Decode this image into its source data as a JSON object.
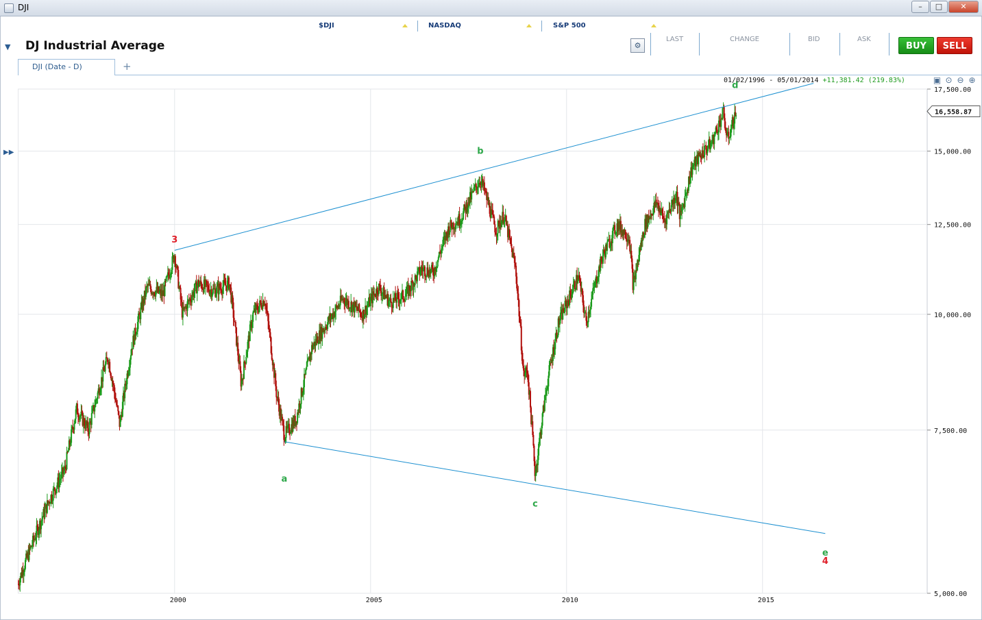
{
  "window": {
    "title": "DJI",
    "buttons": [
      "minimize",
      "maximize",
      "close"
    ]
  },
  "watchlist": [
    {
      "symbol": "$DJI"
    },
    {
      "symbol": "NASDAQ"
    },
    {
      "symbol": "S&P 500"
    }
  ],
  "instrument": {
    "name": "DJ Industrial Average"
  },
  "quote_columns": [
    "LAST",
    "CHANGE",
    "BID",
    "ASK"
  ],
  "buy_label": "BUY",
  "sell_label": "SELL",
  "tabs": [
    {
      "label": "DJI (Date - D)"
    }
  ],
  "add_tab_label": "+",
  "chart_range": {
    "dates": "01/02/1996 - 05/01/2014",
    "change": "+11,381.42 (219.83%)"
  },
  "colors": {
    "up": "#1a9a1a",
    "down": "#b0100c",
    "trendline": "#1b8fd0",
    "grid": "#e3e6ea",
    "wave_green": "#2ea84a",
    "wave_red": "#e0202a"
  },
  "chart_data": {
    "type": "candlestick",
    "y_scale": "log",
    "ylim": [
      5000,
      17500
    ],
    "x_range": [
      1996.0,
      2019.2
    ],
    "x_ticks": [
      "2000",
      "2005",
      "2010",
      "2015"
    ],
    "y_ticks": [
      "17,500.00",
      "15,000.00",
      "12,500.00",
      "10,000.00",
      "7,500.00",
      "5,000.00"
    ],
    "last_price": "16,558.87",
    "price_path": [
      [
        1996.0,
        5120
      ],
      [
        1996.4,
        5700
      ],
      [
        1996.8,
        6300
      ],
      [
        1997.2,
        6800
      ],
      [
        1997.5,
        7900
      ],
      [
        1997.8,
        7500
      ],
      [
        1998.3,
        9000
      ],
      [
        1998.6,
        7600
      ],
      [
        1998.9,
        9200
      ],
      [
        1999.3,
        10700
      ],
      [
        1999.7,
        10500
      ],
      [
        2000.0,
        11600
      ],
      [
        2000.2,
        10000
      ],
      [
        2000.6,
        10800
      ],
      [
        2001.0,
        10600
      ],
      [
        2001.4,
        10800
      ],
      [
        2001.7,
        8400
      ],
      [
        2002.0,
        10000
      ],
      [
        2002.3,
        10400
      ],
      [
        2002.6,
        8200
      ],
      [
        2002.8,
        7400
      ],
      [
        2003.1,
        7700
      ],
      [
        2003.5,
        9200
      ],
      [
        2003.9,
        9800
      ],
      [
        2004.3,
        10400
      ],
      [
        2004.8,
        10000
      ],
      [
        2005.2,
        10700
      ],
      [
        2005.5,
        10300
      ],
      [
        2005.9,
        10500
      ],
      [
        2006.3,
        11200
      ],
      [
        2006.6,
        11100
      ],
      [
        2007.0,
        12400
      ],
      [
        2007.3,
        12700
      ],
      [
        2007.8,
        14000
      ],
      [
        2007.9,
        13600
      ],
      [
        2008.2,
        12300
      ],
      [
        2008.4,
        12800
      ],
      [
        2008.7,
        11200
      ],
      [
        2008.9,
        8600
      ],
      [
        2009.0,
        8700
      ],
      [
        2009.2,
        6700
      ],
      [
        2009.5,
        8400
      ],
      [
        2009.8,
        9800
      ],
      [
        2010.1,
        10500
      ],
      [
        2010.3,
        11000
      ],
      [
        2010.5,
        9800
      ],
      [
        2010.9,
        11500
      ],
      [
        2011.3,
        12500
      ],
      [
        2011.6,
        12100
      ],
      [
        2011.7,
        10700
      ],
      [
        2012.0,
        12500
      ],
      [
        2012.3,
        13200
      ],
      [
        2012.5,
        12600
      ],
      [
        2012.8,
        13500
      ],
      [
        2012.9,
        12700
      ],
      [
        2013.2,
        14400
      ],
      [
        2013.5,
        15000
      ],
      [
        2013.7,
        15300
      ],
      [
        2014.0,
        16500
      ],
      [
        2014.1,
        15400
      ],
      [
        2014.33,
        16558
      ]
    ],
    "trendlines": [
      {
        "from": [
          2000.0,
          11723
        ],
        "to": [
          2016.3,
          17750
        ]
      },
      {
        "from": [
          2002.8,
          7286
        ],
        "to": [
          2016.6,
          5800
        ]
      }
    ],
    "wave_labels": [
      {
        "text": "3",
        "x": 2000.0,
        "y": 11950,
        "color": "red"
      },
      {
        "text": "a",
        "x": 2002.8,
        "y": 6600,
        "color": "green"
      },
      {
        "text": "b",
        "x": 2007.8,
        "y": 14900,
        "color": "green"
      },
      {
        "text": "c",
        "x": 2009.2,
        "y": 6200,
        "color": "green"
      },
      {
        "text": "d",
        "x": 2014.3,
        "y": 17550,
        "color": "green"
      },
      {
        "text": "e",
        "x": 2016.6,
        "y": 5490,
        "color": "green"
      },
      {
        "text": "4",
        "x": 2016.6,
        "y": 5380,
        "color": "red"
      }
    ]
  }
}
